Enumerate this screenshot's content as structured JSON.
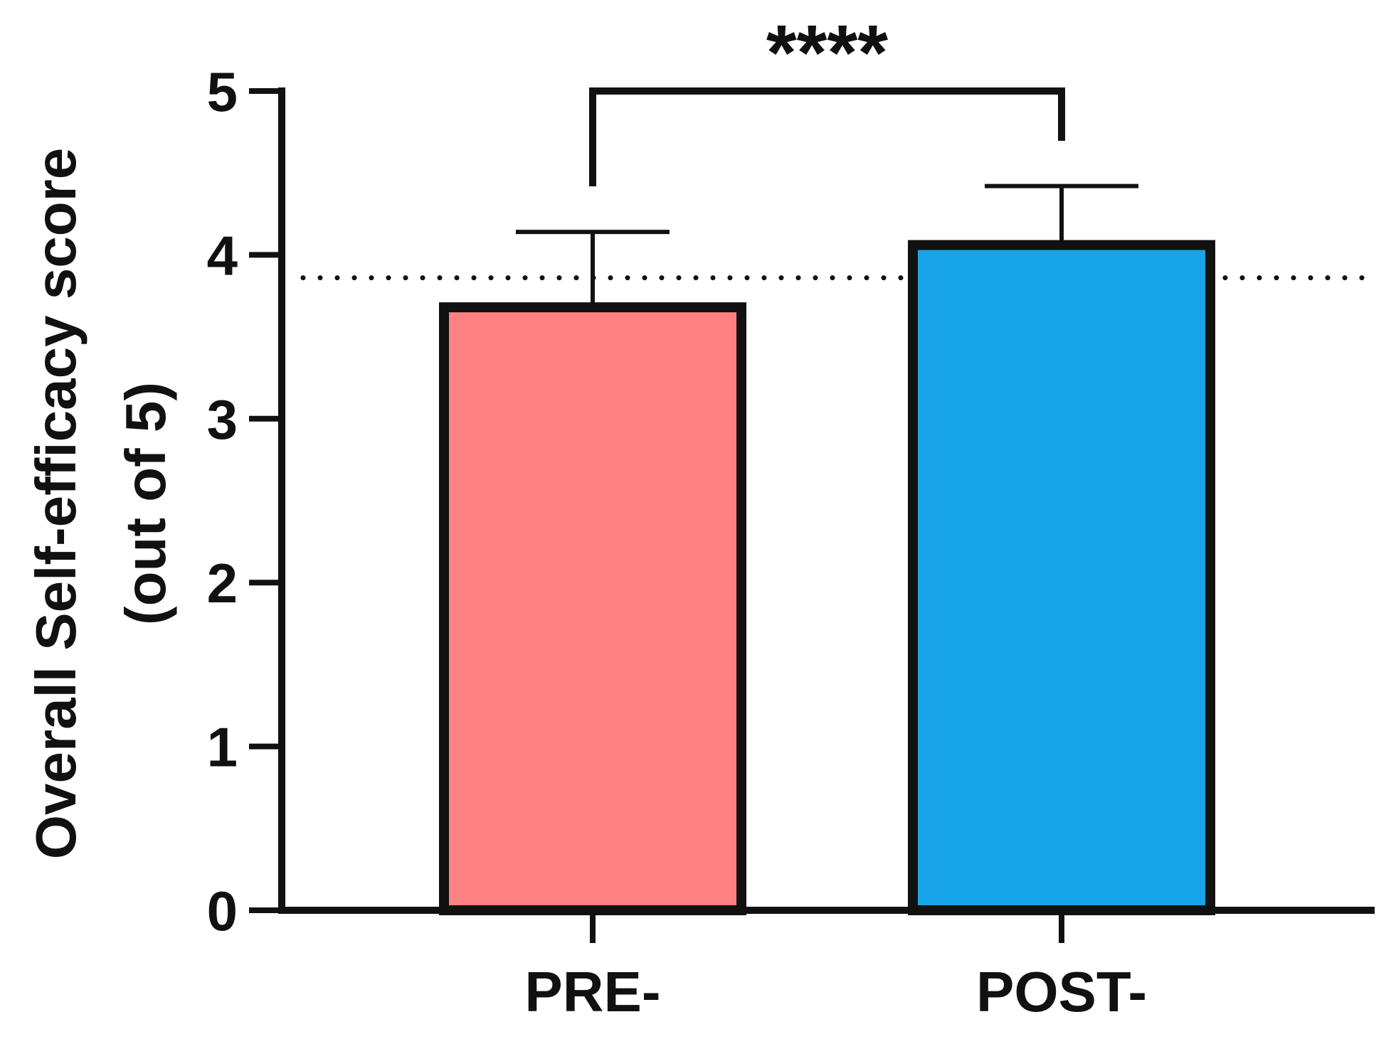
{
  "chart_data": {
    "type": "bar",
    "categories": [
      "PRE-",
      "POST-"
    ],
    "values": [
      3.68,
      4.06
    ],
    "error_upper": [
      4.14,
      4.42
    ],
    "colors": [
      "#FF8080",
      "#18A4E8"
    ],
    "edge_color": "#111111",
    "ylabel_line1": "Overall Self-efficacy score",
    "ylabel_line2": "(out of 5)",
    "ylim": [
      0,
      5
    ],
    "yticks": [
      "0",
      "1",
      "2",
      "3",
      "4",
      "5"
    ],
    "reference_line": 3.86,
    "significance": {
      "label": "****",
      "between": [
        "PRE-",
        "POST-"
      ]
    },
    "grid": false,
    "legend": "none"
  }
}
